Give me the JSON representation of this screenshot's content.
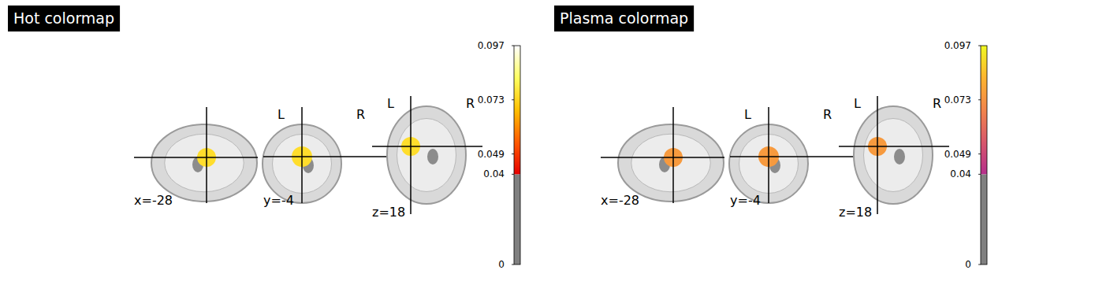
{
  "chart_data": [
    {
      "type": "brain_slices",
      "title": "Hot colormap",
      "cuts": [
        {
          "value": -28,
          "label": "x=-28"
        },
        {
          "value": -4,
          "label": "y=-4"
        },
        {
          "value": 18,
          "label": "z=18"
        }
      ],
      "hemisphere_labels": [
        "L",
        "R"
      ],
      "blob_value": 0.075,
      "colorbar": {
        "range": [
          0,
          0.097
        ],
        "ticks": [
          0,
          0.04,
          0.049,
          0.073,
          0.097
        ],
        "threshold": 0.04,
        "colors": [
          "#e60000",
          "#ff5a00",
          "#ffc000",
          "#ffff60",
          "#ffffff"
        ]
      }
    },
    {
      "type": "brain_slices",
      "title": "Plasma colormap",
      "cuts": [
        {
          "value": -28,
          "label": "x=-28"
        },
        {
          "value": -4,
          "label": "y=-4"
        },
        {
          "value": 18,
          "label": "z=18"
        }
      ],
      "hemisphere_labels": [
        "L",
        "R"
      ],
      "blob_value": 0.075,
      "colorbar": {
        "range": [
          0,
          0.097
        ],
        "ticks": [
          0,
          0.04,
          0.049,
          0.073,
          0.097
        ],
        "threshold": 0.04,
        "colors": [
          "#b52f8c",
          "#d8576b",
          "#f2844b",
          "#fdb42f",
          "#f0f921"
        ]
      }
    }
  ]
}
